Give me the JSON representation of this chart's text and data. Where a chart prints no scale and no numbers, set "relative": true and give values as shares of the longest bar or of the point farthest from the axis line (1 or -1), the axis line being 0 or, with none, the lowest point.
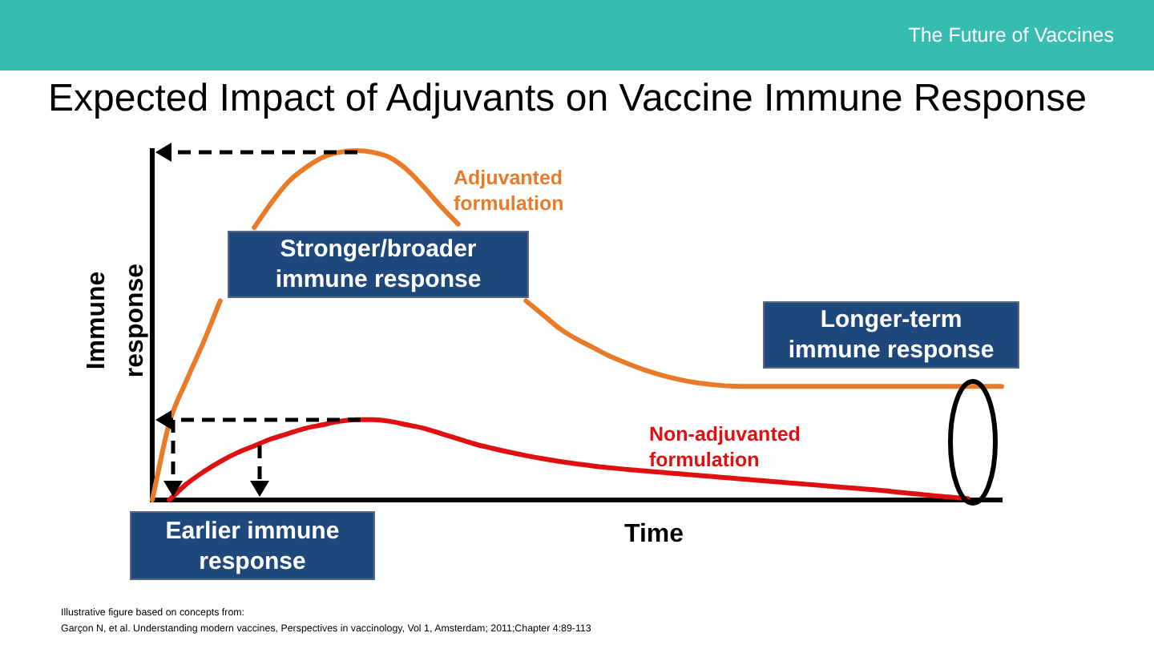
{
  "chart_data": {
    "type": "line",
    "title": "Expected Impact of Adjuvants on Vaccine Immune Response",
    "xlabel": "Time",
    "ylabel": "Immune response",
    "relative": true,
    "legend": false,
    "grid": false,
    "categories": [
      null,
      null,
      null,
      null,
      null,
      null,
      null,
      null,
      null,
      null,
      null,
      null,
      null,
      null,
      null,
      null,
      null,
      null,
      null,
      null,
      null,
      null,
      null,
      null,
      null,
      null,
      null,
      null,
      null,
      null,
      null,
      null,
      null,
      null,
      null,
      null,
      null,
      null,
      null,
      null,
      null,
      null,
      null,
      null,
      null,
      null,
      null,
      null,
      null,
      null,
      null
    ],
    "series": [
      {
        "name": "Adjuvanted formulation",
        "color": "#e87a28",
        "values": [
          0,
          0.22,
          0.34,
          0.45,
          0.57,
          null,
          0.78,
          0.85,
          0.91,
          0.95,
          0.98,
          0.995,
          1,
          0.995,
          0.98,
          0.945,
          0.895,
          0.84,
          0.79,
          null,
          null,
          null,
          0.57,
          0.53,
          0.49,
          0.46,
          0.435,
          0.41,
          0.39,
          0.372,
          0.357,
          0.345,
          0.336,
          0.33,
          0.326,
          0.325,
          0.325,
          0.325,
          0.325,
          0.325,
          0.325,
          0.325,
          0.325,
          0.325,
          0.325,
          0.325,
          0.325,
          0.325,
          0.325,
          0.325,
          0.325
        ]
      },
      {
        "name": "Non-adjuvanted formulation",
        "color": "#e01010",
        "values": [
          null,
          0,
          0.045,
          0.08,
          0.11,
          0.135,
          0.155,
          0.175,
          0.19,
          0.205,
          0.215,
          0.225,
          0.23,
          0.23,
          0.225,
          0.215,
          0.205,
          0.19,
          0.175,
          0.16,
          0.148,
          0.137,
          0.127,
          0.118,
          0.11,
          0.103,
          0.097,
          0.092,
          0.087,
          0.083,
          0.079,
          0.075,
          0.071,
          0.067,
          0.063,
          0.059,
          0.055,
          0.051,
          0.047,
          0.043,
          0.039,
          0.035,
          0.031,
          0.027,
          0.022,
          0.017,
          0.012,
          0.008,
          0.004,
          null,
          null
        ]
      }
    ],
    "annotations": [
      "The Future of Vaccines",
      "Stronger/broader immune response",
      "Longer-term immune response",
      "Earlier immune response",
      "Illustrative figure based on concepts from:",
      "Garçon N, et al. Understanding modern vaccines, Perspectives in vaccinology, Vol 1, Amsterdam; 2011;Chapter 4:89-113"
    ]
  }
}
